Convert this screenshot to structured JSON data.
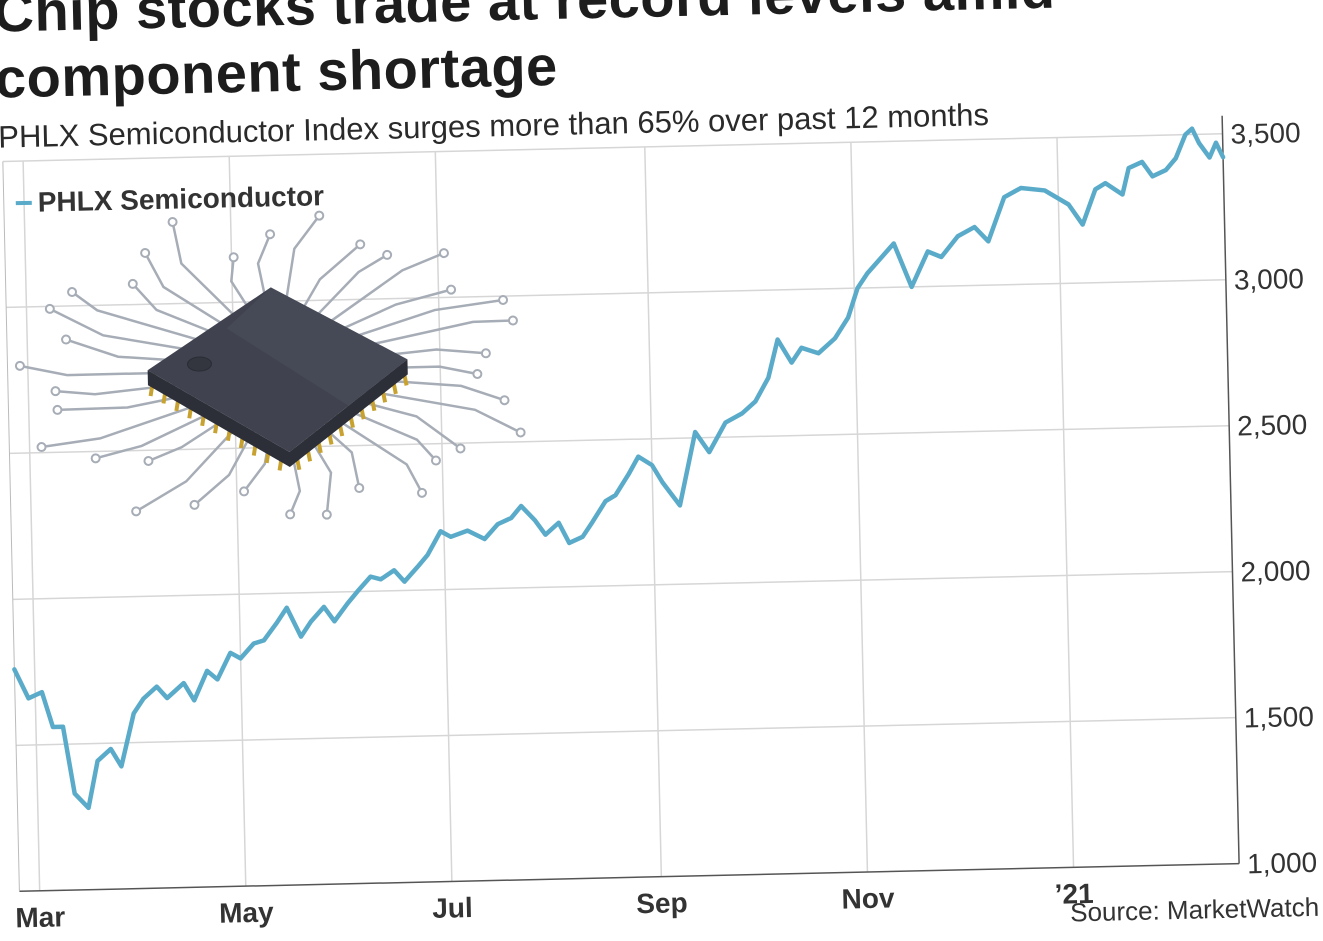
{
  "title_line1": "Chip stocks trade at record levels amid",
  "title_line2": "component shortage",
  "subtitle": "PHLX Semiconductor Index surges more than 65% over past 12 months",
  "source": "Source: MarketWatch",
  "colors": {
    "line": "#5aabc9",
    "grid": "#d6d6d6",
    "axis": "#555555",
    "chip_body": "#3f4250",
    "chip_pins": "#c8a230",
    "traces": "#a7adb6"
  },
  "icons": [
    "microchip-illustration"
  ],
  "chart_data": {
    "type": "line",
    "title": "Chip stocks trade at record levels amid component shortage",
    "subtitle": "PHLX Semiconductor Index surges more than 65% over past 12 months",
    "xlabel": "",
    "ylabel": "",
    "x_tick_labels": [
      "Mar",
      "May",
      "Jul",
      "Sep",
      "Nov",
      "’21"
    ],
    "x_ticks": [
      "2020-03-01",
      "2020-05-01",
      "2020-07-01",
      "2020-09-01",
      "2020-11-01",
      "2021-01-01"
    ],
    "xlim": [
      "2020-02-24",
      "2021-02-19"
    ],
    "y_tick_labels": [
      "1,000",
      "1,500",
      "2,000",
      "2,500",
      "3,000",
      "3,500"
    ],
    "y_ticks": [
      1000,
      1500,
      2000,
      2500,
      3000,
      3500
    ],
    "ylim": [
      1000,
      3500
    ],
    "grid": true,
    "legend": "top-left",
    "series": [
      {
        "name": "PHLX Semiconductor",
        "x": [
          "2020-02-24",
          "2020-02-28",
          "2020-03-03",
          "2020-03-06",
          "2020-03-09",
          "2020-03-12",
          "2020-03-16",
          "2020-03-19",
          "2020-03-23",
          "2020-03-26",
          "2020-03-30",
          "2020-04-02",
          "2020-04-06",
          "2020-04-09",
          "2020-04-14",
          "2020-04-17",
          "2020-04-21",
          "2020-04-24",
          "2020-04-28",
          "2020-05-01",
          "2020-05-05",
          "2020-05-08",
          "2020-05-12",
          "2020-05-15",
          "2020-05-19",
          "2020-05-22",
          "2020-05-26",
          "2020-05-29",
          "2020-06-02",
          "2020-06-05",
          "2020-06-09",
          "2020-06-12",
          "2020-06-16",
          "2020-06-19",
          "2020-06-23",
          "2020-06-26",
          "2020-06-30",
          "2020-07-03",
          "2020-07-08",
          "2020-07-13",
          "2020-07-17",
          "2020-07-21",
          "2020-07-24",
          "2020-07-28",
          "2020-07-31",
          "2020-08-04",
          "2020-08-07",
          "2020-08-11",
          "2020-08-14",
          "2020-08-18",
          "2020-08-21",
          "2020-08-25",
          "2020-08-28",
          "2020-09-01",
          "2020-09-04",
          "2020-09-09",
          "2020-09-14",
          "2020-09-18",
          "2020-09-23",
          "2020-09-28",
          "2020-10-02",
          "2020-10-06",
          "2020-10-09",
          "2020-10-13",
          "2020-10-16",
          "2020-10-21",
          "2020-10-26",
          "2020-10-30",
          "2020-11-02",
          "2020-11-05",
          "2020-11-09",
          "2020-11-13",
          "2020-11-18",
          "2020-11-23",
          "2020-11-27",
          "2020-12-02",
          "2020-12-07",
          "2020-12-11",
          "2020-12-16",
          "2020-12-21",
          "2020-12-28",
          "2021-01-04",
          "2021-01-08",
          "2021-01-12",
          "2021-01-15",
          "2021-01-20",
          "2021-01-22",
          "2021-01-26",
          "2021-01-29",
          "2021-02-02",
          "2021-02-05",
          "2021-02-08",
          "2021-02-10",
          "2021-02-12",
          "2021-02-15",
          "2021-02-17",
          "2021-02-19"
        ],
        "values": [
          1760,
          1660,
          1680,
          1560,
          1560,
          1330,
          1280,
          1440,
          1480,
          1420,
          1600,
          1650,
          1690,
          1650,
          1700,
          1640,
          1740,
          1710,
          1800,
          1780,
          1830,
          1840,
          1900,
          1950,
          1850,
          1900,
          1950,
          1900,
          1960,
          2000,
          2050,
          2040,
          2070,
          2030,
          2080,
          2120,
          2200,
          2180,
          2200,
          2170,
          2220,
          2240,
          2280,
          2230,
          2180,
          2220,
          2150,
          2170,
          2220,
          2290,
          2310,
          2380,
          2440,
          2410,
          2350,
          2270,
          2520,
          2450,
          2550,
          2580,
          2620,
          2700,
          2830,
          2750,
          2800,
          2780,
          2830,
          2900,
          3000,
          3050,
          3100,
          3150,
          3000,
          3120,
          3100,
          3170,
          3200,
          3150,
          3300,
          3330,
          3320,
          3270,
          3200,
          3320,
          3340,
          3300,
          3390,
          3410,
          3360,
          3380,
          3420,
          3500,
          3520,
          3470,
          3420,
          3470,
          3420
        ]
      }
    ]
  }
}
